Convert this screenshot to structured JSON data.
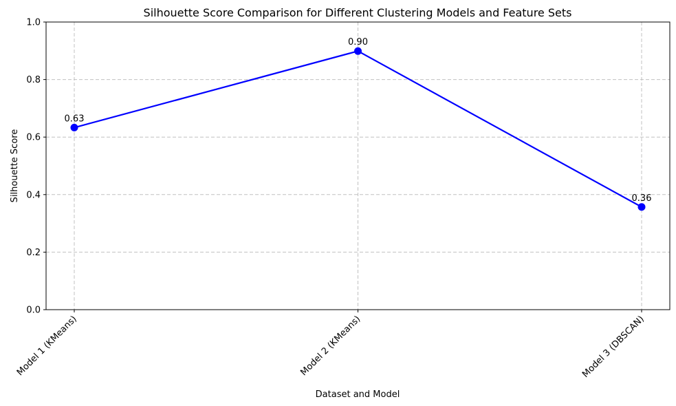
{
  "chart_data": {
    "type": "line",
    "title": "Silhouette Score Comparison for Different Clustering Models and Feature Sets",
    "xlabel": "Dataset and Model",
    "ylabel": "Silhouette Score",
    "categories": [
      "Model 1 (KMeans)",
      "Model 2 (KMeans)",
      "Model 3 (DBSCAN)"
    ],
    "series": [
      {
        "values": [
          0.633,
          0.899,
          0.357
        ],
        "data_labels": [
          "0.63",
          "0.90",
          "0.36"
        ],
        "color": "#0000ff",
        "marker": "circle"
      }
    ],
    "ylim": [
      0,
      1
    ],
    "yticks": [
      0.0,
      0.2,
      0.4,
      0.6,
      0.8,
      1.0
    ],
    "ytick_labels": [
      "0.0",
      "0.2",
      "0.4",
      "0.6",
      "0.8",
      "1.0"
    ],
    "grid": true,
    "legend": "none"
  }
}
